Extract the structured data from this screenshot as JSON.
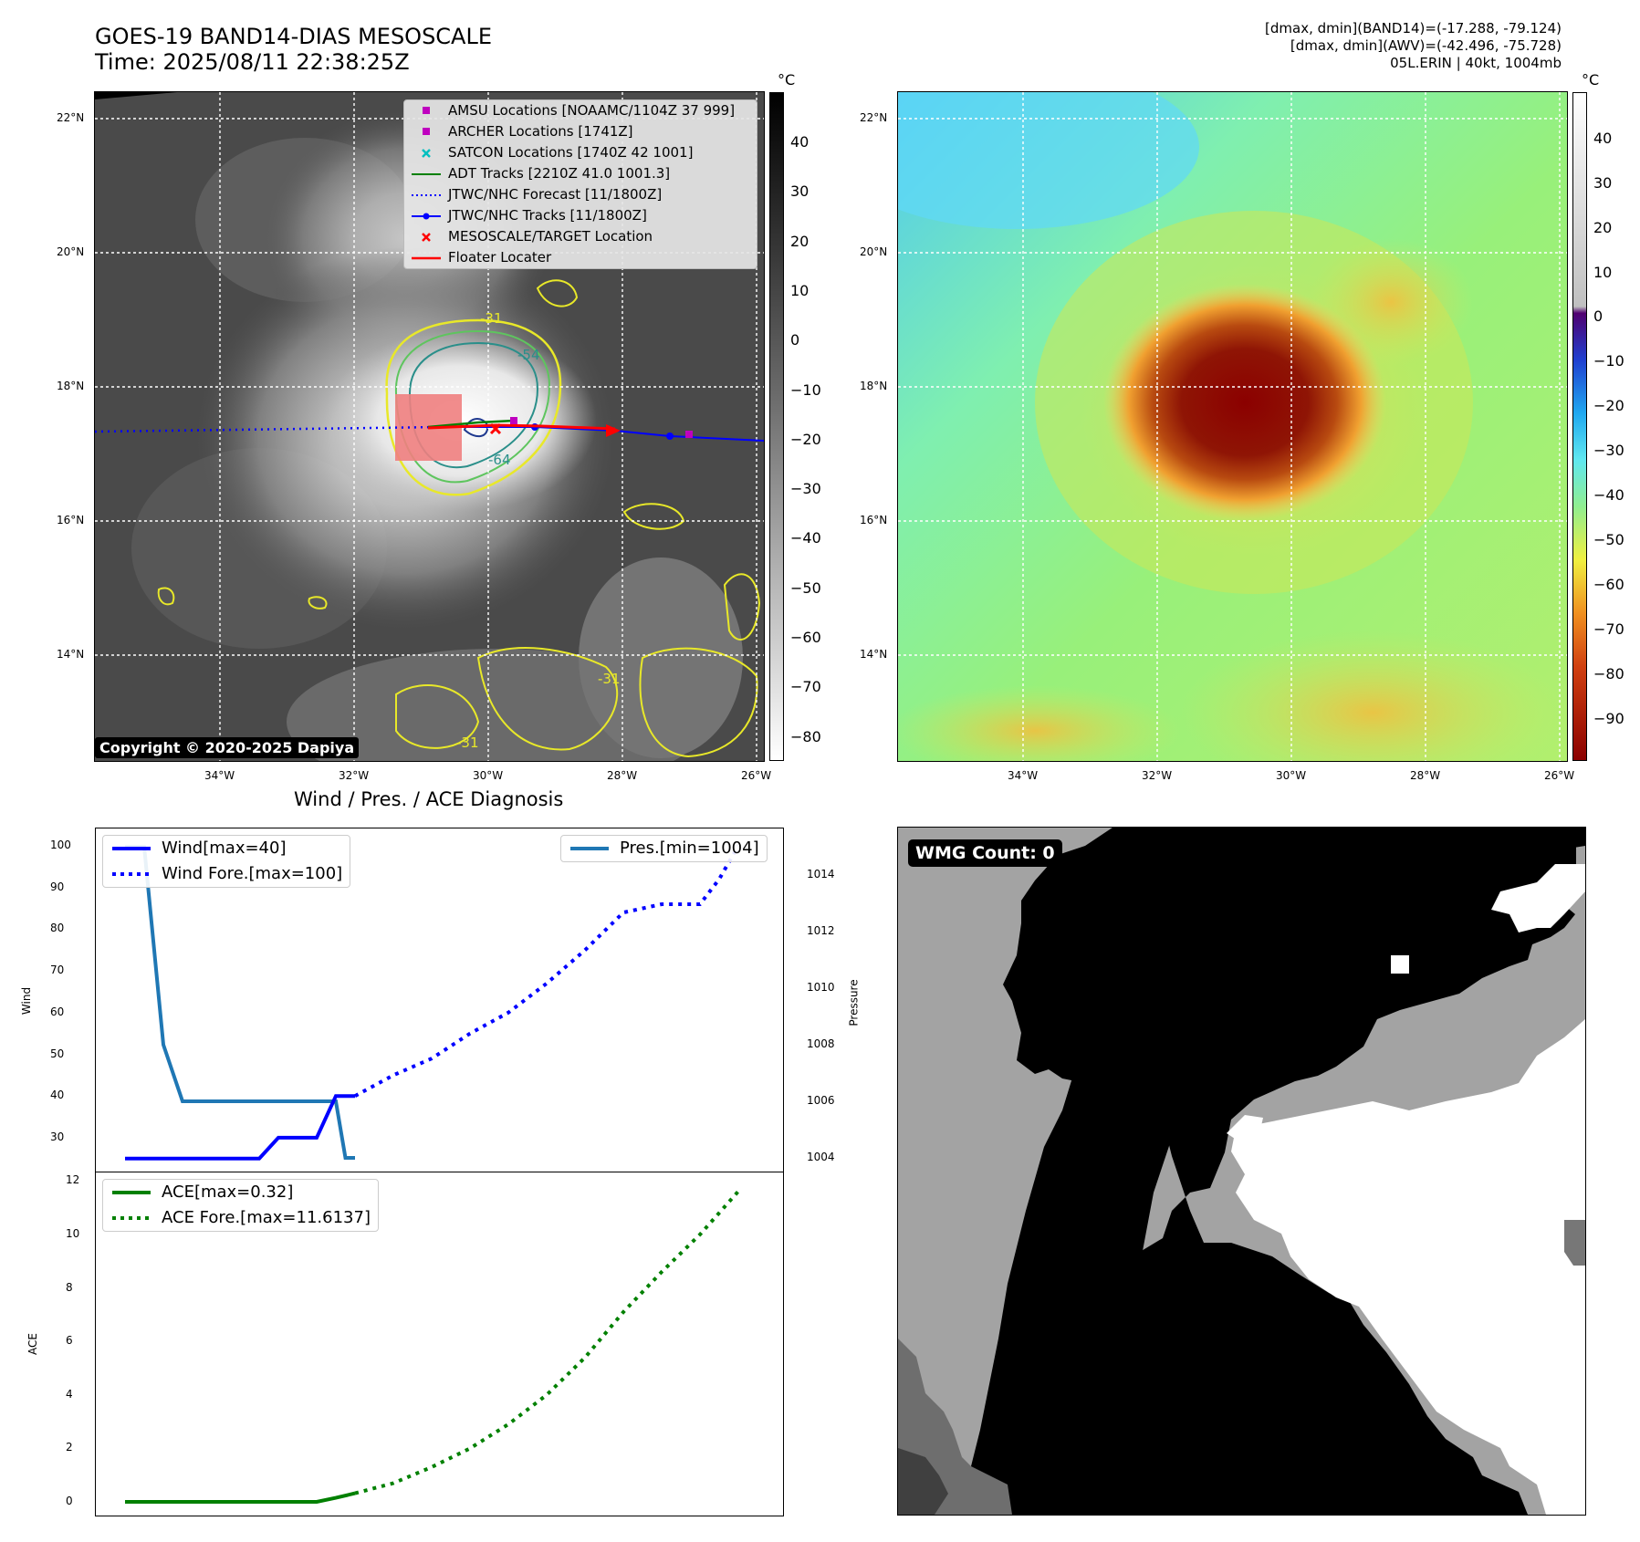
{
  "header": {
    "title_line1": "GOES-19 BAND14-DIAS MESOSCALE",
    "title_line2": "Time: 2025/08/11 22:38:25Z",
    "info_line1": "[dmax, dmin](BAND14)=(-17.288, -79.124)",
    "info_line2": "[dmax, dmin](AWV)=(-42.496, -75.728)",
    "info_line3": "05L.ERIN | 40kt, 1004mb"
  },
  "map_axes": {
    "lat_ticks": [
      "22°N",
      "20°N",
      "18°N",
      "16°N",
      "14°N"
    ],
    "lon_ticks": [
      "34°W",
      "32°W",
      "30°W",
      "28°W",
      "26°W"
    ]
  },
  "ir_panel": {
    "colorbar_unit": "°C",
    "colorbar_ticks": [
      "40",
      "30",
      "20",
      "10",
      "0",
      "−10",
      "−20",
      "−30",
      "−40",
      "−50",
      "−60",
      "−70",
      "−80"
    ],
    "copyright": "Copyright © 2020-2025 Dapiya",
    "contour_labels": [
      "-31",
      "-54",
      "-64",
      "-31",
      "-31"
    ],
    "legend": [
      {
        "label": "AMSU Locations [NOAAMC/1104Z 37 999]",
        "color": "#bf00bf",
        "kind": "square"
      },
      {
        "label": "ARCHER Locations [1741Z]",
        "color": "#bf00bf",
        "kind": "square"
      },
      {
        "label": "SATCON Locations [1740Z 42 1001]",
        "color": "#00bfbf",
        "kind": "x"
      },
      {
        "label": "ADT Tracks [2210Z 41.0 1001.3]",
        "color": "#008000",
        "kind": "line"
      },
      {
        "label": "JTWC/NHC Forecast [11/1800Z]",
        "color": "#0000ff",
        "kind": "dotted"
      },
      {
        "label": "JTWC/NHC Tracks [11/1800Z]",
        "color": "#0000ff",
        "kind": "line-dot"
      },
      {
        "label": "MESOSCALE/TARGET Location",
        "color": "#ff0000",
        "kind": "x"
      },
      {
        "label": "Floater Locater",
        "color": "#ff0000",
        "kind": "line"
      }
    ]
  },
  "awv_panel": {
    "colorbar_unit": "°C",
    "colorbar_ticks": [
      "40",
      "30",
      "20",
      "10",
      "0",
      "−10",
      "−20",
      "−30",
      "−40",
      "−50",
      "−60",
      "−70",
      "−80",
      "−90"
    ]
  },
  "diagnosis": {
    "title": "Wind / Pres. / ACE Diagnosis",
    "wind_axis_label": "Wind",
    "pressure_axis_label": "Pressure",
    "ace_axis_label": "ACE",
    "wind_ticks": [
      "100",
      "90",
      "80",
      "70",
      "60",
      "50",
      "40",
      "30"
    ],
    "pres_ticks": [
      "1014",
      "1012",
      "1010",
      "1008",
      "1006",
      "1004"
    ],
    "ace_ticks": [
      "12",
      "10",
      "8",
      "6",
      "4",
      "2",
      "0"
    ],
    "legend_wind": [
      "Wind[max=40]",
      "Wind Fore.[max=100]"
    ],
    "legend_pres": [
      "Pres.[min=1004]"
    ],
    "legend_ace": [
      "ACE[max=0.32]",
      "ACE Fore.[max=11.6137]"
    ]
  },
  "wmg": {
    "badge": "WMG Count: 0"
  },
  "chart_data": [
    {
      "type": "line",
      "title": "Wind / Pres. / ACE Diagnosis",
      "ylabel": "Wind",
      "ylim": [
        25,
        102
      ],
      "series": [
        {
          "name": "Wind[max=40]",
          "x": [
            0,
            1,
            2,
            3,
            4,
            5,
            6,
            7,
            8,
            9,
            10,
            11,
            12
          ],
          "values": [
            25,
            25,
            25,
            25,
            25,
            25,
            25,
            25,
            30,
            30,
            30,
            40,
            40
          ],
          "color": "#0000ff",
          "style": "solid"
        },
        {
          "name": "Wind Fore.[max=100]",
          "x": [
            12,
            14,
            16,
            18,
            20,
            22,
            24,
            26,
            28,
            30,
            31,
            32
          ],
          "values": [
            40,
            45,
            49,
            55,
            60,
            67,
            75,
            84,
            86,
            86,
            92,
            100
          ],
          "color": "#0000ff",
          "style": "dotted"
        }
      ]
    },
    {
      "type": "line",
      "ylabel": "Pressure",
      "ylim": [
        1003.5,
        1015.5
      ],
      "series": [
        {
          "name": "Pres.[min=1004]",
          "x": [
            0,
            1,
            2,
            3,
            4,
            5,
            6,
            7,
            8,
            9,
            10,
            11,
            11.5,
            12
          ],
          "values": [
            1015,
            1015,
            1008,
            1006,
            1006,
            1006,
            1006,
            1006,
            1006,
            1006,
            1006,
            1006,
            1004,
            1004
          ],
          "color": "#1f77b4",
          "style": "solid"
        }
      ]
    },
    {
      "type": "line",
      "ylabel": "ACE",
      "ylim": [
        -0.5,
        12
      ],
      "series": [
        {
          "name": "ACE[max=0.32]",
          "x": [
            0,
            2,
            4,
            6,
            8,
            10,
            11,
            12
          ],
          "values": [
            0,
            0,
            0,
            0,
            0,
            0,
            0.15,
            0.32
          ],
          "color": "#008000",
          "style": "solid"
        },
        {
          "name": "ACE Fore.[max=11.6137]",
          "x": [
            12,
            14,
            16,
            18,
            20,
            22,
            24,
            26,
            28,
            30,
            32
          ],
          "values": [
            0.32,
            0.7,
            1.3,
            2.0,
            2.9,
            4.0,
            5.4,
            7.1,
            8.6,
            10.0,
            11.6137
          ],
          "color": "#008000",
          "style": "dotted"
        }
      ]
    }
  ]
}
